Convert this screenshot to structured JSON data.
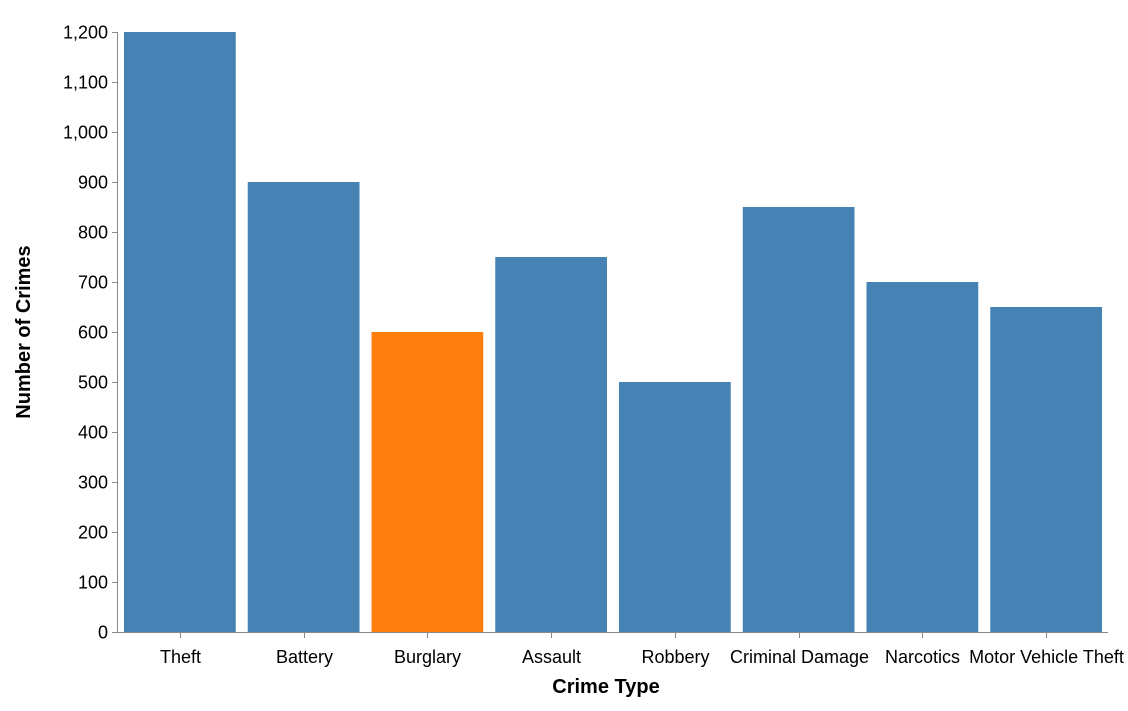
{
  "chart_data": {
    "type": "bar",
    "title": "",
    "xlabel": "Crime Type",
    "ylabel": "Number of Crimes",
    "categories": [
      "Theft",
      "Battery",
      "Burglary",
      "Assault",
      "Robbery",
      "Criminal Damage",
      "Narcotics",
      "Motor Vehicle Theft"
    ],
    "values": [
      1200,
      900,
      600,
      750,
      500,
      850,
      700,
      650
    ],
    "highlighted_category": "Burglary",
    "ylim": [
      0,
      1200
    ],
    "yticks": [
      0,
      100,
      200,
      300,
      400,
      500,
      600,
      700,
      800,
      900,
      1000,
      1100,
      1200
    ],
    "ytick_labels": [
      "0",
      "100",
      "200",
      "300",
      "400",
      "500",
      "600",
      "700",
      "800",
      "900",
      "1,000",
      "1,100",
      "1,200"
    ],
    "grid": false,
    "legend": "none",
    "colors": {
      "bar": "#4682b4",
      "highlight": "#ff7f0e",
      "axis": "#888888"
    }
  }
}
